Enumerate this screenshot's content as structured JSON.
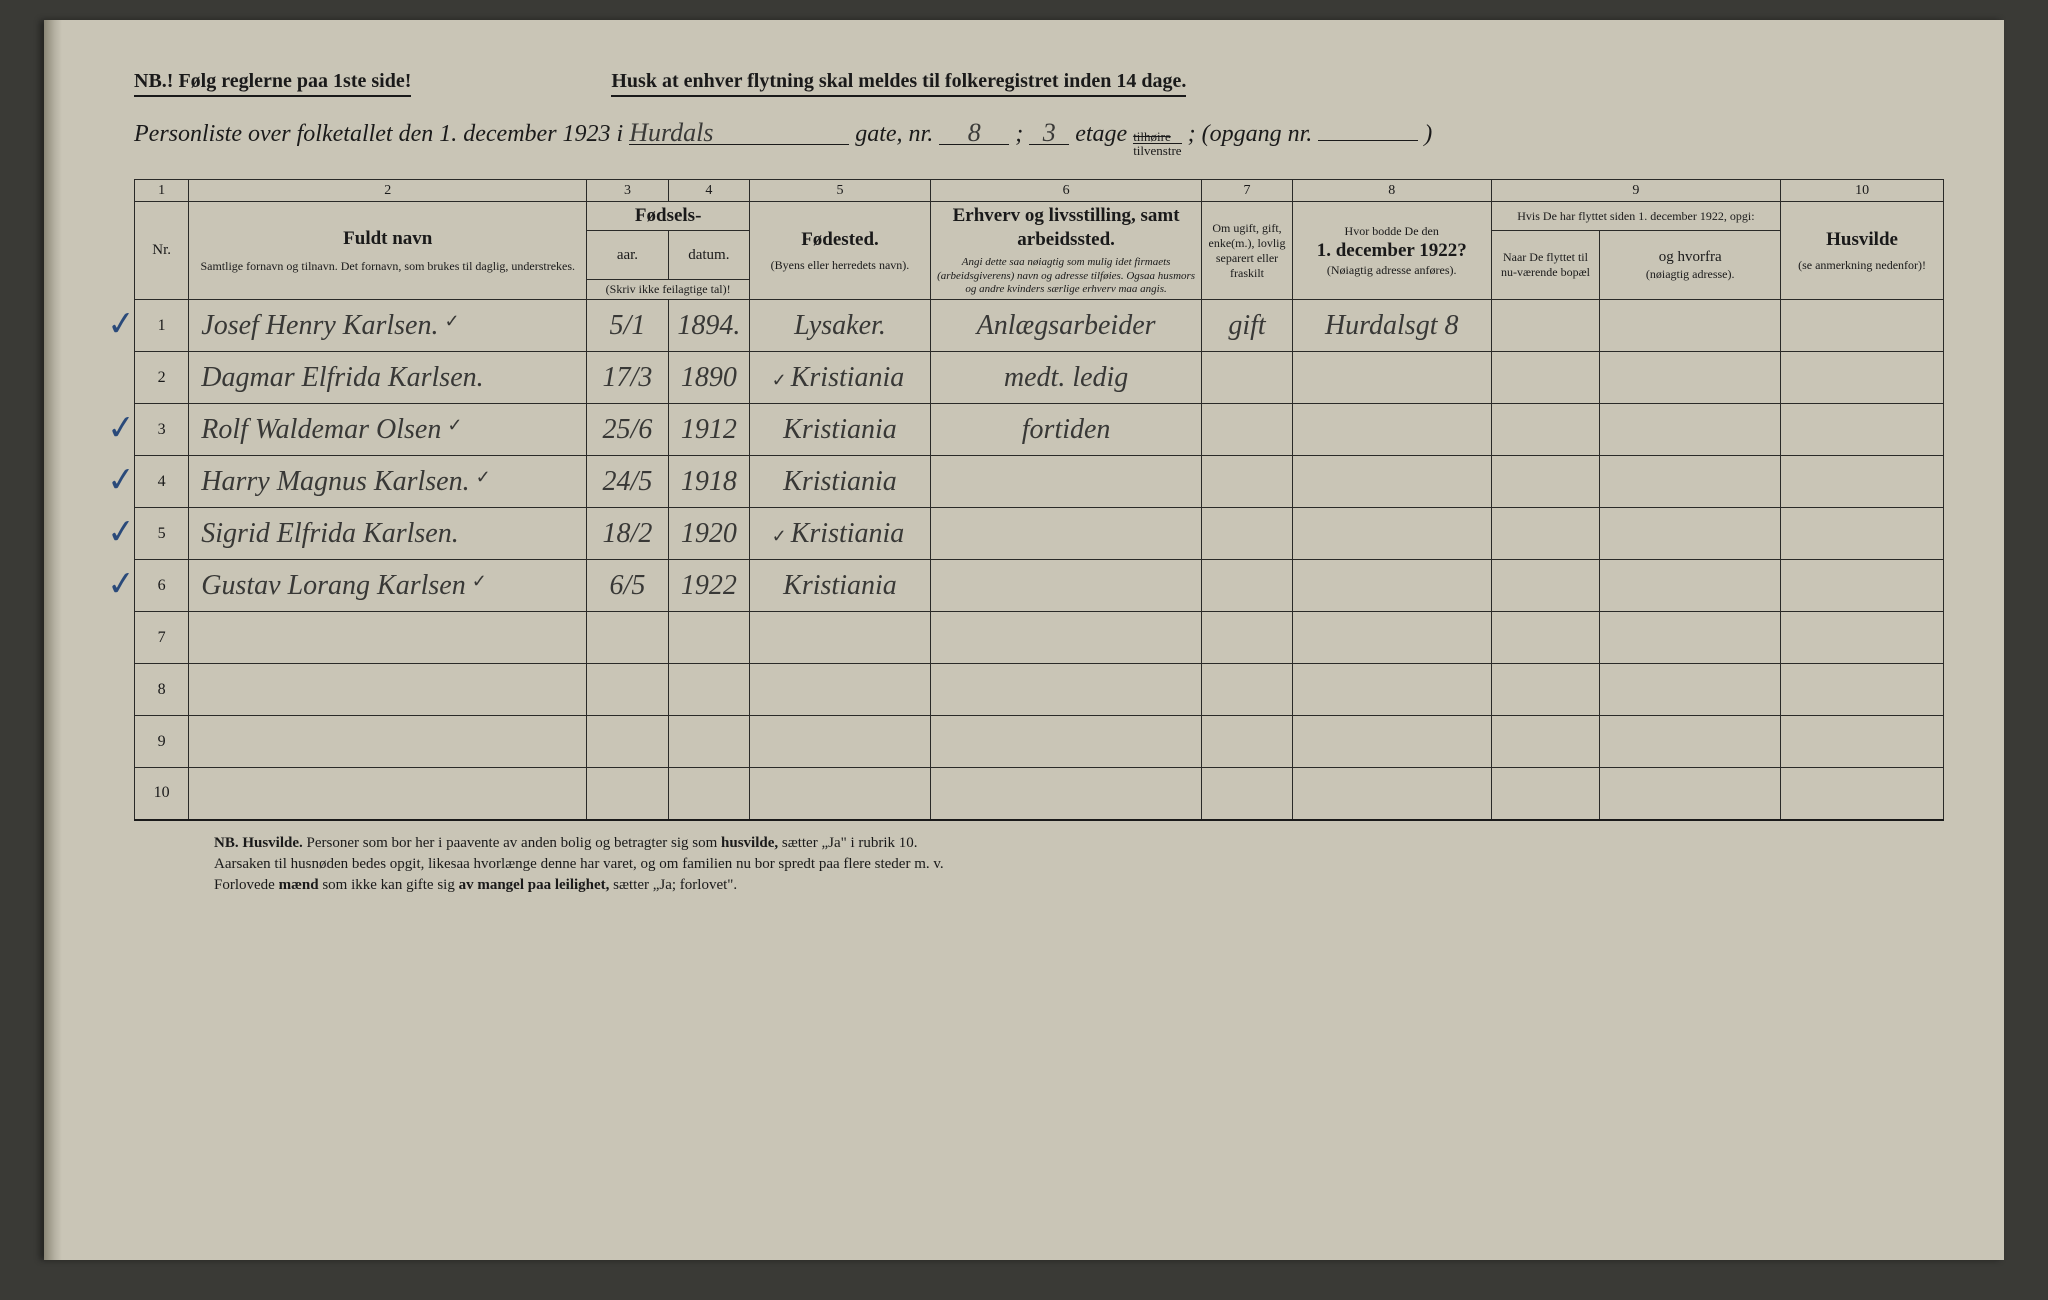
{
  "header": {
    "nb_line": "NB.! Følg reglerne paa 1ste side!",
    "husk_line": "Husk at enhver flytning skal meldes til folkeregistret inden 14 dage.",
    "title_prefix": "Personliste over folketallet den 1. december 1923 i",
    "street_hw": "Hurdals",
    "gate_label": "gate, nr.",
    "gate_nr_hw": "8",
    "semicolon": ";",
    "etage_nr_hw": "3",
    "etage_label": "etage",
    "stacked_top": "tilhøire",
    "stacked_bot": "tilvenstre",
    "opgang_label": "; (opgang nr.",
    "opgang_close": ")"
  },
  "colnums": [
    "1",
    "2",
    "3",
    "4",
    "5",
    "6",
    "7",
    "8",
    "9",
    "10"
  ],
  "columns": {
    "nr": "Nr.",
    "name_title": "Fuldt navn",
    "name_sub": "Samtlige fornavn og tilnavn. Det fornavn, som brukes til daglig, understrekes.",
    "fodsels": "Fødsels-",
    "aar": "aar.",
    "datum": "datum.",
    "aar_sub": "(Skriv ikke feilagtige tal)!",
    "fodested_title": "Fødested.",
    "fodested_sub": "(Byens eller herredets navn).",
    "erhverv_title": "Erhverv og livsstilling, samt arbeidssted.",
    "erhverv_sub": "Angi dette saa nøiagtig som mulig idet firmaets (arbeidsgiverens) navn og adresse tilføies. Ogsaa husmors og andre kvinders særlige erhverv maa angis.",
    "marital": "Om ugift, gift, enke(m.), lovlig separert eller fraskilt",
    "prev_title": "Hvor bodde De den",
    "prev_bold": "1. december 1922?",
    "prev_sub": "(Nøiagtig adresse anføres).",
    "moved_super": "Hvis De har flyttet siden 1. december 1922, opgi:",
    "when": "Naar De flyttet til nu-værende bopæl",
    "from_title": "og hvorfra",
    "from_sub": "(nøiagtig adresse).",
    "husvilde_title": "Husvilde",
    "husvilde_sub": "(se anmerkning nedenfor)!"
  },
  "rows": [
    {
      "nr": "1",
      "check": true,
      "name": "Josef Henry Karlsen.",
      "tick": "✓",
      "day": "5/1",
      "year": "1894.",
      "birthplace": "Lysaker.",
      "occupation": "Anlægsarbeider",
      "marital": "gift",
      "prev": "Hurdalsgt 8",
      "when": "",
      "from": "",
      "husv": ""
    },
    {
      "nr": "2",
      "check": false,
      "name": "Dagmar Elfrida Karlsen.",
      "tick": "",
      "day": "17/3",
      "year": "1890",
      "birthplace": "Kristiania",
      "birthtick": "✓",
      "occupation": "medt. ledig",
      "marital": "",
      "prev": "",
      "when": "",
      "from": "",
      "husv": ""
    },
    {
      "nr": "3",
      "check": true,
      "name": "Rolf Waldemar Olsen",
      "tick": "✓",
      "day": "25/6",
      "year": "1912",
      "birthplace": "Kristiania",
      "occupation": "fortiden",
      "marital": "",
      "prev": "",
      "when": "",
      "from": "",
      "husv": ""
    },
    {
      "nr": "4",
      "check": true,
      "name": "Harry Magnus Karlsen.",
      "tick": "✓",
      "day": "24/5",
      "year": "1918",
      "birthplace": "Kristiania",
      "occupation": "",
      "marital": "",
      "prev": "",
      "when": "",
      "from": "",
      "husv": ""
    },
    {
      "nr": "5",
      "check": true,
      "name": "Sigrid Elfrida Karlsen.",
      "tick": "",
      "day": "18/2",
      "year": "1920",
      "birthplace": "Kristiania",
      "birthtick": "✓",
      "occupation": "",
      "marital": "",
      "prev": "",
      "when": "",
      "from": "",
      "husv": ""
    },
    {
      "nr": "6",
      "check": true,
      "name": "Gustav Lorang Karlsen",
      "tick": "✓",
      "day": "6/5",
      "year": "1922",
      "birthplace": "Kristiania",
      "occupation": "",
      "marital": "",
      "prev": "",
      "when": "",
      "from": "",
      "husv": ""
    },
    {
      "nr": "7",
      "check": false,
      "name": "",
      "tick": "",
      "day": "",
      "year": "",
      "birthplace": "",
      "occupation": "",
      "marital": "",
      "prev": "",
      "when": "",
      "from": "",
      "husv": ""
    },
    {
      "nr": "8",
      "check": false,
      "name": "",
      "tick": "",
      "day": "",
      "year": "",
      "birthplace": "",
      "occupation": "",
      "marital": "",
      "prev": "",
      "when": "",
      "from": "",
      "husv": ""
    },
    {
      "nr": "9",
      "check": false,
      "name": "",
      "tick": "",
      "day": "",
      "year": "",
      "birthplace": "",
      "occupation": "",
      "marital": "",
      "prev": "",
      "when": "",
      "from": "",
      "husv": ""
    },
    {
      "nr": "10",
      "check": false,
      "name": "",
      "tick": "",
      "day": "",
      "year": "",
      "birthplace": "",
      "occupation": "",
      "marital": "",
      "prev": "",
      "when": "",
      "from": "",
      "husv": ""
    }
  ],
  "footnote": {
    "l1a": "NB. Husvilde.",
    "l1b": " Personer som bor her i paavente av anden bolig og betragter sig som ",
    "l1c": "husvilde,",
    "l1d": " sætter „Ja\" i rubrik 10.",
    "l2": "Aarsaken til husnøden bedes opgit, likesaa hvorlænge denne har varet, og om familien nu bor spredt paa flere steder m. v.",
    "l3a": "Forlovede ",
    "l3b": "mænd",
    "l3c": " som ikke kan gifte sig ",
    "l3d": "av mangel paa leilighet,",
    "l3e": " sætter „Ja; forlovet\"."
  }
}
